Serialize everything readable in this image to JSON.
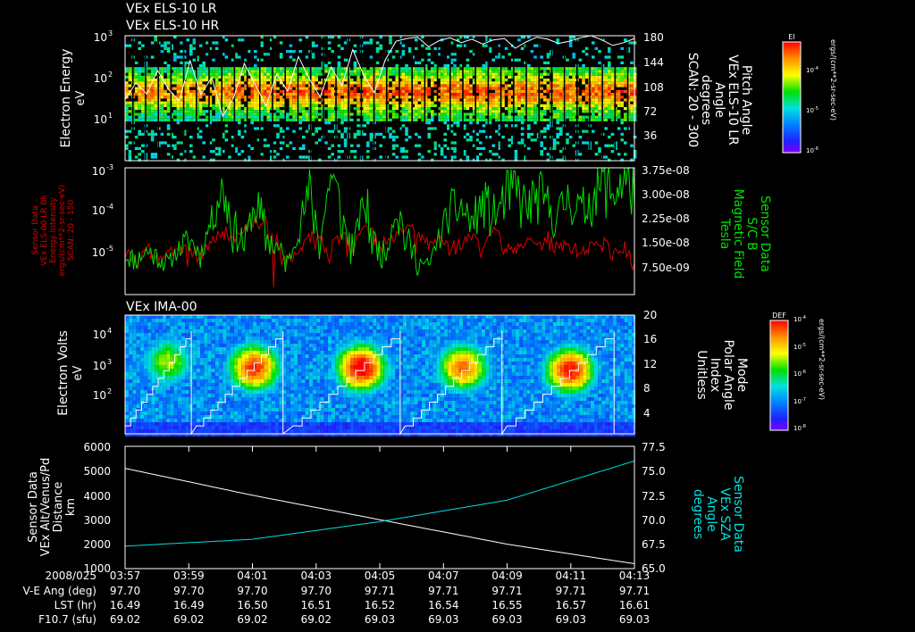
{
  "colors": {
    "background": "#000000",
    "axes": "#ffffff",
    "mag_field": "#00e000",
    "energy_flux": "#e00000",
    "sza": "#00e0e0",
    "altitude": "#ffffff"
  },
  "chart_data": [
    {
      "type": "heatmap",
      "panel": "els-energy-spectrogram",
      "titles": [
        "VEx ELS-10 LR",
        "VEx ELS-10 HR"
      ],
      "ylabel": "Electron Energy",
      "yunit": "eV",
      "yscale": "log",
      "yticks": [
        "10",
        "10",
        "10"
      ],
      "yticks_exp": [
        "3",
        "2",
        "1"
      ],
      "right_axis": {
        "label_lines": [
          "Pitch Angle",
          "VEx ELS-10 LR",
          "Angle",
          "degrees",
          "SCAN: 20 - 300"
        ],
        "ticks": [
          "180",
          "144",
          "108",
          "72",
          "36"
        ],
        "ylim": [
          0,
          180
        ]
      },
      "colorbar": {
        "label": "EI",
        "unit": "ergs/(cm**2-sr-sec-eV)",
        "ticks": [
          "10",
          "10",
          "10"
        ],
        "ticks_exp": [
          "-4",
          "-5",
          "-6"
        ]
      },
      "pitch_angle_trace_deg": [
        88,
        112,
        96,
        130,
        103,
        86,
        144,
        95,
        120,
        64,
        90,
        140,
        110,
        79,
        125,
        100,
        150,
        118,
        92,
        135,
        108,
        160,
        124,
        98,
        145,
        172,
        176,
        178,
        164,
        173,
        177,
        170,
        175,
        168,
        174,
        176,
        162,
        171,
        178,
        175,
        169,
        172,
        177,
        180,
        174,
        166,
        170,
        176
      ]
    },
    {
      "type": "line",
      "panel": "energy-flux-and-magnetic-field",
      "ylabel_lines": [
        "Sensor Data",
        "VEx ELS-00 LR Bk",
        "Energy Intensity",
        "ergs/(cm**2-sr-sec-eV)",
        "SCAN: 20 - 150"
      ],
      "yscale": "log",
      "yticks": [
        "10",
        "10",
        "10"
      ],
      "yticks_exp": [
        "-3",
        "-4",
        "-5"
      ],
      "right_axis": {
        "label_lines": [
          "Sensor Data",
          "S/C B",
          "Magnetic Field",
          "Tesla"
        ],
        "ticks": [
          "3.75e-08",
          "3.00e-08",
          "2.25e-08",
          "1.50e-08",
          "7.50e-09"
        ],
        "ylim": [
          0,
          3.75e-08
        ]
      },
      "series": [
        {
          "axis": "left",
          "values": [
            1.1e-05,
            6e-06,
            1.4e-05,
            1e-05,
            9e-06,
            1.8e-05,
            1.2e-05,
            1e-05,
            2e-05,
            3.5e-05,
            2.5e-05,
            4e-05,
            6e-05,
            5e-05,
            1.2e-05,
            7e-06,
            1e-05,
            3e-05,
            2.2e-05,
            1.5e-05,
            2.6e-05,
            1.4e-05,
            4.5e-05,
            2.4e-05,
            1.6e-05,
            2.8e-05,
            4e-05,
            2.5e-05,
            1.8e-05,
            2.4e-05,
            1.5e-05,
            1.9e-05,
            2.7e-05,
            1.3e-05,
            3.5e-05,
            2e-05,
            1.6e-05,
            2.2e-05,
            1.2e-05,
            2.5e-05,
            1.4e-05,
            1.8e-05,
            1.1e-05,
            1.6e-05,
            2e-05,
            1.2e-05,
            1.5e-05,
            1e-05
          ]
        },
        {
          "axis": "right",
          "values": [
            1.2e-08,
            1e-08,
            1.3e-08,
            1.1e-08,
            9e-09,
            1.4e-08,
            1.6e-08,
            1.2e-08,
            2.3e-08,
            3.2e-08,
            2e-08,
            1.5e-08,
            2.7e-08,
            1.7e-08,
            1.4e-08,
            9e-09,
            1.9e-08,
            3e-08,
            1.6e-08,
            3.6e-08,
            2.2e-08,
            1.3e-08,
            2.8e-08,
            1.5e-08,
            1.1e-08,
            2.6e-08,
            1.6e-08,
            1e-08,
            8e-09,
            1.8e-08,
            2.4e-08,
            2.6e-08,
            2.1e-08,
            2.7e-08,
            2.3e-08,
            2.8e-08,
            3.1e-08,
            2.5e-08,
            2.9e-08,
            2.6e-08,
            2.3e-08,
            3e-08,
            2.4e-08,
            2.8e-08,
            3.3e-08,
            3e-08,
            3.4e-08,
            3.2e-08
          ]
        }
      ]
    },
    {
      "type": "heatmap",
      "panel": "ima-energy-spectrogram",
      "titles": [
        "VEx IMA-00"
      ],
      "ylabel": "Electron Volts",
      "yunit": "eV",
      "yscale": "log",
      "yticks": [
        "10",
        "10",
        "10"
      ],
      "yticks_exp": [
        "4",
        "3",
        "2"
      ],
      "right_axis": {
        "label_lines": [
          "Mode",
          "Polar Angle",
          "Index",
          "Unitless"
        ],
        "ticks": [
          "20",
          "16",
          "12",
          "8",
          "4"
        ],
        "ylim": [
          0,
          20
        ]
      },
      "colorbar": {
        "label": "DEF",
        "unit": "ergs/(cm**2-sr-sec-eV)",
        "ticks": [
          "10",
          "10",
          "10",
          "10",
          "10"
        ],
        "ticks_exp": [
          "-4",
          "-5",
          "-6",
          "-7",
          "-8"
        ]
      },
      "hot_spots": [
        {
          "x": 0.08,
          "y": 0.38,
          "intensity": 0.62
        },
        {
          "x": 0.25,
          "y": 0.43,
          "intensity": 0.92
        },
        {
          "x": 0.46,
          "y": 0.43,
          "intensity": 1.0
        },
        {
          "x": 0.66,
          "y": 0.43,
          "intensity": 0.85
        },
        {
          "x": 0.87,
          "y": 0.45,
          "intensity": 0.95
        }
      ]
    },
    {
      "type": "line",
      "panel": "altitude-and-sza",
      "ylabel_lines": [
        "Sensor Data",
        "VEx Alt/Venus/Pd",
        "Distance",
        "km"
      ],
      "yticks": [
        "6000",
        "5000",
        "4000",
        "3000",
        "2000",
        "1000"
      ],
      "ylim": [
        1000,
        6000
      ],
      "right_axis": {
        "label_lines": [
          "Sensor Data",
          "VEx SZA",
          "Angle",
          "degrees"
        ],
        "ticks": [
          "77.5",
          "75.0",
          "72.5",
          "70.0",
          "67.5",
          "65.0"
        ],
        "ylim": [
          65.0,
          77.5
        ]
      },
      "series": [
        {
          "axis": "left",
          "x": [
            0,
            0.25,
            0.5,
            0.75,
            1.0
          ],
          "values": [
            5100,
            4000,
            3000,
            2000,
            1200
          ]
        },
        {
          "axis": "right",
          "x": [
            0,
            0.25,
            0.5,
            0.75,
            1.0
          ],
          "values": [
            67.3,
            68.0,
            69.8,
            72.0,
            76.0
          ]
        }
      ]
    }
  ],
  "time_axis": {
    "row_labels": [
      "2008/025",
      "V-E Ang (deg)",
      "LST (hr)",
      "F10.7 (sfu)"
    ],
    "ticks": [
      {
        "time": "03:57",
        "ve": "97.70",
        "lst": "16.49",
        "f107": "69.02"
      },
      {
        "time": "03:59",
        "ve": "97.70",
        "lst": "16.49",
        "f107": "69.02"
      },
      {
        "time": "04:01",
        "ve": "97.70",
        "lst": "16.50",
        "f107": "69.02"
      },
      {
        "time": "04:03",
        "ve": "97.70",
        "lst": "16.51",
        "f107": "69.02"
      },
      {
        "time": "04:05",
        "ve": "97.71",
        "lst": "16.52",
        "f107": "69.03"
      },
      {
        "time": "04:07",
        "ve": "97.71",
        "lst": "16.54",
        "f107": "69.03"
      },
      {
        "time": "04:09",
        "ve": "97.71",
        "lst": "16.55",
        "f107": "69.03"
      },
      {
        "time": "04:11",
        "ve": "97.71",
        "lst": "16.57",
        "f107": "69.03"
      },
      {
        "time": "04:13",
        "ve": "97.71",
        "lst": "16.61",
        "f107": "69.03"
      }
    ]
  }
}
